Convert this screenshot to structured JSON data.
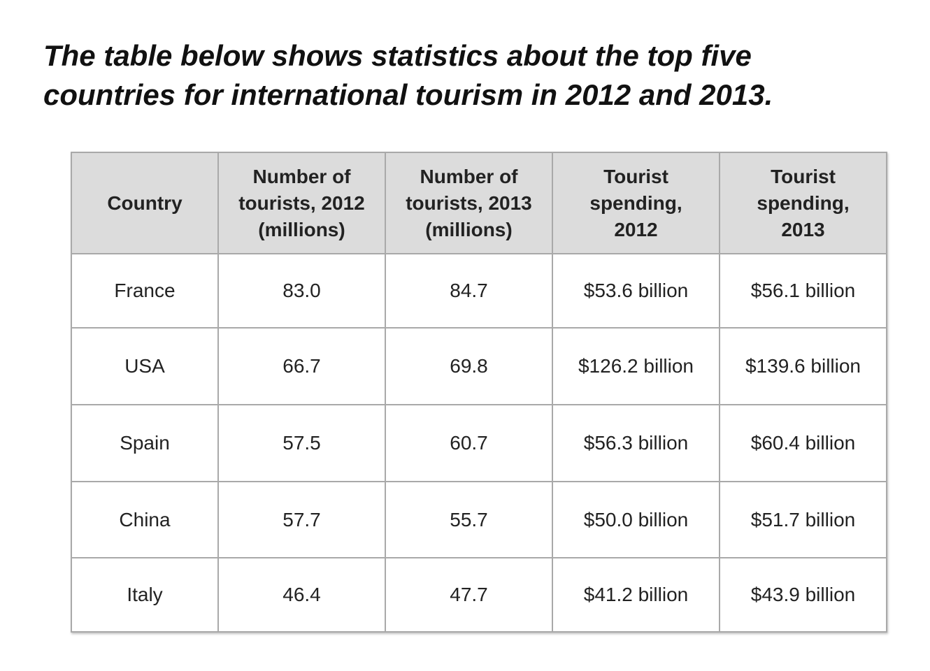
{
  "title": {
    "line1": "The table below shows statistics about the top five",
    "line2": "countries for international tourism in 2012 and 2013."
  },
  "table": {
    "headers": [
      {
        "lines": [
          "Country"
        ]
      },
      {
        "lines": [
          "Number of",
          "tourists, 2012",
          "(millions)"
        ]
      },
      {
        "lines": [
          "Number of",
          "tourists, 2013",
          "(millions)"
        ]
      },
      {
        "lines": [
          "Tourist",
          "spending,",
          "2012"
        ]
      },
      {
        "lines": [
          "Tourist",
          "spending,",
          "2013"
        ]
      }
    ],
    "rows": [
      {
        "country": "France",
        "tourists_2012": "83.0",
        "tourists_2013": "84.7",
        "spending_2012": "$53.6 billion",
        "spending_2013": "$56.1 billion"
      },
      {
        "country": "USA",
        "tourists_2012": "66.7",
        "tourists_2013": "69.8",
        "spending_2012": "$126.2 billion",
        "spending_2013": "$139.6 billion"
      },
      {
        "country": "Spain",
        "tourists_2012": "57.5",
        "tourists_2013": "60.7",
        "spending_2012": "$56.3 billion",
        "spending_2013": "$60.4 billion"
      },
      {
        "country": "China",
        "tourists_2012": "57.7",
        "tourists_2013": "55.7",
        "spending_2012": "$50.0 billion",
        "spending_2013": "$51.7 billion"
      },
      {
        "country": "Italy",
        "tourists_2012": "46.4",
        "tourists_2013": "47.7",
        "spending_2012": "$41.2 billion",
        "spending_2013": "$43.9 billion"
      }
    ]
  },
  "colors": {
    "header_background": "#dcdcdc",
    "border": "#a9a9a9",
    "text": "#222222"
  }
}
